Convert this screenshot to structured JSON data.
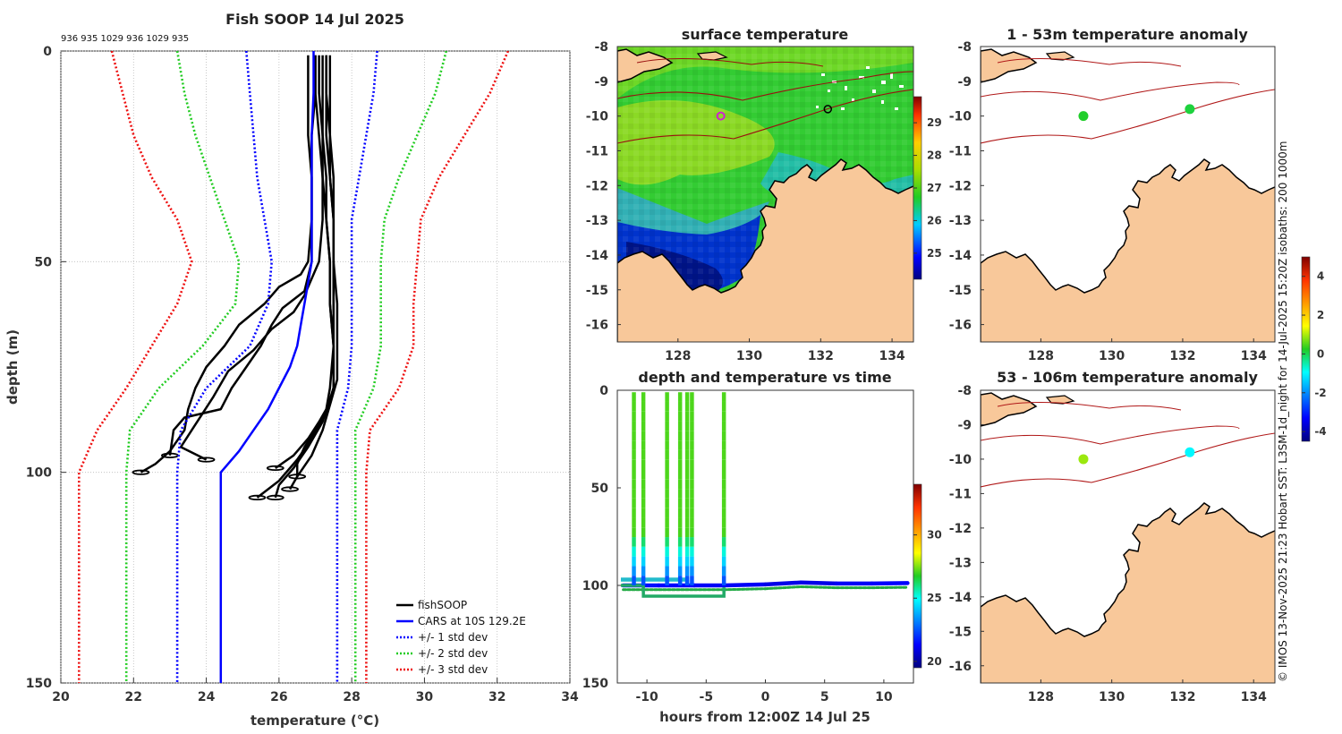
{
  "chart_data": [
    {
      "type": "line",
      "title": "Fish SOOP 14 Jul 2025",
      "xlabel": "temperature (°C)",
      "ylabel": "depth (m)",
      "xlim": [
        20,
        34
      ],
      "ylim": [
        150,
        0
      ],
      "xticks": [
        "20",
        "22",
        "24",
        "26",
        "28",
        "30",
        "32",
        "34"
      ],
      "yticks": [
        "0",
        "50",
        "100",
        "150"
      ],
      "grid": true,
      "legend_position": "bottom-right",
      "header_labels": "936 935 1029 936 1029 935",
      "legend": [
        "fishSOOP",
        "CARS at 10S 129.2E",
        "+/- 1 std dev",
        "+/- 2 std dev",
        "+/- 3 std dev"
      ],
      "series": [
        {
          "name": "fishSOOP",
          "color": "#000000",
          "profiles": [
            {
              "depth": [
                1,
                10,
                20,
                30,
                40,
                50,
                53,
                56,
                60,
                65,
                70,
                75,
                80,
                85,
                90,
                95,
                98,
                100
              ],
              "temp": [
                27.0,
                27.0,
                26.9,
                26.9,
                26.9,
                26.8,
                26.6,
                26.0,
                25.6,
                24.9,
                24.5,
                24.0,
                23.7,
                23.5,
                23.4,
                23.0,
                22.6,
                22.2
              ]
            },
            {
              "depth": [
                1,
                10,
                20,
                30,
                40,
                50,
                57,
                61,
                65,
                70,
                75,
                80,
                85,
                87,
                90,
                96
              ],
              "temp": [
                26.8,
                26.8,
                26.8,
                26.9,
                26.9,
                26.9,
                26.7,
                26.1,
                25.8,
                25.5,
                25.1,
                24.7,
                24.4,
                23.4,
                23.1,
                23.0
              ]
            },
            {
              "depth": [
                1,
                10,
                20,
                30,
                40,
                50,
                58,
                62,
                66,
                71,
                76,
                82,
                86,
                90,
                94,
                97
              ],
              "temp": [
                27.2,
                27.2,
                27.2,
                27.2,
                27.2,
                27.1,
                26.7,
                26.4,
                25.8,
                25.3,
                24.6,
                24.2,
                23.9,
                23.6,
                23.3,
                24.0
              ]
            },
            {
              "depth": [
                1,
                10,
                20,
                30,
                40,
                50,
                60,
                70,
                80,
                85,
                88,
                92,
                96,
                99
              ],
              "temp": [
                27.3,
                27.3,
                27.4,
                27.4,
                27.5,
                27.5,
                27.5,
                27.5,
                27.4,
                27.3,
                27.1,
                26.8,
                26.4,
                25.9
              ]
            },
            {
              "depth": [
                1,
                10,
                20,
                30,
                40,
                50,
                60,
                70,
                80,
                86,
                90,
                94,
                98,
                101
              ],
              "temp": [
                27.0,
                27.0,
                27.1,
                27.2,
                27.3,
                27.4,
                27.4,
                27.5,
                27.5,
                27.3,
                27.0,
                26.7,
                26.5,
                26.5
              ]
            },
            {
              "depth": [
                1,
                10,
                20,
                30,
                40,
                50,
                60,
                70,
                78,
                84,
                90,
                96,
                101,
                104
              ],
              "temp": [
                27.4,
                27.4,
                27.4,
                27.5,
                27.5,
                27.5,
                27.6,
                27.6,
                27.6,
                27.4,
                27.2,
                26.9,
                26.5,
                26.3
              ]
            },
            {
              "depth": [
                1,
                10,
                20,
                30,
                40,
                50,
                60,
                70,
                80,
                88,
                94,
                99,
                103,
                106
              ],
              "temp": [
                27.1,
                27.1,
                27.2,
                27.3,
                27.3,
                27.4,
                27.4,
                27.5,
                27.5,
                27.2,
                26.8,
                26.4,
                26.0,
                25.9
              ]
            },
            {
              "depth": [
                1,
                10,
                20,
                30,
                40,
                50,
                60,
                70,
                80,
                86,
                92,
                97,
                102,
                106
              ],
              "temp": [
                27.3,
                27.3,
                27.3,
                27.4,
                27.5,
                27.5,
                27.5,
                27.5,
                27.5,
                27.3,
                26.9,
                26.5,
                26.0,
                25.4
              ]
            }
          ]
        },
        {
          "name": "CARS",
          "color": "#0000ff",
          "style": "solid",
          "depth": [
            0,
            10,
            20,
            30,
            40,
            50,
            55,
            60,
            65,
            70,
            75,
            80,
            85,
            90,
            95,
            100,
            110,
            120,
            130,
            140,
            150
          ],
          "temp": [
            26.95,
            26.95,
            26.9,
            26.9,
            26.9,
            26.9,
            26.8,
            26.7,
            26.6,
            26.5,
            26.3,
            26.0,
            25.7,
            25.3,
            24.9,
            24.4,
            24.4,
            24.4,
            24.4,
            24.4,
            24.4
          ]
        },
        {
          "name": "+1 std",
          "color": "#0000ff",
          "style": "dotted",
          "depth": [
            0,
            10,
            20,
            30,
            40,
            50,
            60,
            70,
            80,
            90,
            100,
            110,
            120,
            130,
            140,
            150
          ],
          "temp": [
            28.7,
            28.6,
            28.4,
            28.2,
            28.0,
            28.0,
            28.0,
            28.0,
            27.9,
            27.6,
            27.6,
            27.6,
            27.6,
            27.6,
            27.6,
            27.6
          ]
        },
        {
          "name": "-1 std",
          "color": "#0000ff",
          "style": "dotted",
          "depth": [
            0,
            10,
            20,
            30,
            40,
            50,
            60,
            70,
            80,
            90,
            100,
            110,
            120,
            130,
            140,
            150
          ],
          "temp": [
            25.1,
            25.2,
            25.3,
            25.4,
            25.6,
            25.8,
            25.7,
            25.2,
            24.0,
            23.3,
            23.2,
            23.2,
            23.2,
            23.2,
            23.2,
            23.2
          ]
        },
        {
          "name": "+2 std",
          "color": "#22cc22",
          "style": "dotted",
          "depth": [
            0,
            10,
            20,
            30,
            40,
            50,
            60,
            70,
            80,
            90,
            100,
            110,
            120,
            130,
            140,
            150
          ],
          "temp": [
            30.6,
            30.3,
            29.8,
            29.3,
            28.9,
            28.8,
            28.8,
            28.8,
            28.6,
            28.1,
            28.1,
            28.1,
            28.1,
            28.1,
            28.1,
            28.1
          ]
        },
        {
          "name": "-2 std",
          "color": "#22cc22",
          "style": "dotted",
          "depth": [
            0,
            10,
            20,
            30,
            40,
            50,
            60,
            70,
            80,
            90,
            100,
            110,
            120,
            130,
            140,
            150
          ],
          "temp": [
            23.2,
            23.4,
            23.7,
            24.1,
            24.5,
            24.9,
            24.8,
            23.9,
            22.7,
            21.9,
            21.8,
            21.8,
            21.8,
            21.8,
            21.8,
            21.8
          ]
        },
        {
          "name": "+3 std",
          "color": "#ee1111",
          "style": "dotted",
          "depth": [
            0,
            10,
            20,
            30,
            40,
            50,
            60,
            70,
            80,
            90,
            100,
            110,
            120,
            130,
            140,
            150
          ],
          "temp": [
            32.3,
            31.8,
            31.1,
            30.4,
            29.9,
            29.8,
            29.7,
            29.7,
            29.3,
            28.5,
            28.4,
            28.4,
            28.4,
            28.4,
            28.4,
            28.4
          ]
        },
        {
          "name": "-3 std",
          "color": "#ee1111",
          "style": "dotted",
          "depth": [
            0,
            10,
            20,
            30,
            40,
            50,
            60,
            70,
            80,
            90,
            100,
            110,
            120,
            130,
            140,
            150
          ],
          "temp": [
            21.4,
            21.7,
            22.0,
            22.5,
            23.2,
            23.6,
            23.2,
            22.5,
            21.8,
            21.0,
            20.5,
            20.5,
            20.5,
            20.5,
            20.5,
            20.5
          ]
        }
      ]
    },
    {
      "type": "heatmap",
      "title": "surface temperature",
      "xlim": [
        126.3,
        134.6
      ],
      "ylim": [
        -16.5,
        -8
      ],
      "xticks": [
        "128",
        "130",
        "132",
        "134"
      ],
      "yticks": [
        "-8",
        "-9",
        "-10",
        "-11",
        "-12",
        "-13",
        "-14",
        "-15",
        "-16"
      ],
      "colorbar": {
        "ticks": [
          "25",
          "26",
          "27",
          "28",
          "29"
        ],
        "range": [
          24.2,
          29.8
        ]
      },
      "markers": [
        {
          "lon": 129.2,
          "lat": -10.0,
          "color": "#d020d0"
        },
        {
          "lon": 132.2,
          "lat": -9.8,
          "color": "#000000"
        }
      ]
    },
    {
      "type": "scatter",
      "title": "depth and temperature vs time",
      "xlabel": "hours from 12:00Z 14 Jul 25",
      "xlim": [
        -12.5,
        12.5
      ],
      "ylim": [
        150,
        0
      ],
      "xticks": [
        "-10",
        "-5",
        "0",
        "5",
        "10"
      ],
      "yticks": [
        "0",
        "50",
        "100",
        "150"
      ],
      "colorbar": {
        "ticks": [
          "20",
          "25",
          "30"
        ],
        "range": [
          19.5,
          34
        ]
      },
      "casts": [
        -11.1,
        -10.3,
        -8.3,
        -7.2,
        -6.6,
        -6.2,
        -3.5
      ],
      "bottom_track": {
        "time": [
          -12,
          -9,
          -6,
          -3.5,
          0,
          3,
          6,
          9,
          12
        ],
        "depth": [
          100,
          100,
          100,
          100,
          99.5,
          98.5,
          99,
          99,
          98.8
        ],
        "temp": [
          21.5,
          21.3,
          21.2,
          21.2,
          21.0,
          21.0,
          21.2,
          21.3,
          21.4
        ]
      }
    },
    {
      "type": "scatter",
      "title": "1 - 53m temperature anomaly",
      "xlim": [
        126.3,
        134.6
      ],
      "ylim": [
        -16.5,
        -8
      ],
      "xticks": [
        "128",
        "130",
        "132",
        "134"
      ],
      "yticks": [
        "-8",
        "-9",
        "-10",
        "-11",
        "-12",
        "-13",
        "-14",
        "-15",
        "-16"
      ],
      "points": [
        {
          "lon": 129.2,
          "lat": -10.0,
          "anomaly": 0.2
        },
        {
          "lon": 132.2,
          "lat": -9.8,
          "anomaly": 0.1
        }
      ]
    },
    {
      "type": "scatter",
      "title": "53 - 106m temperature anomaly",
      "xlim": [
        126.3,
        134.6
      ],
      "ylim": [
        -16.5,
        -8
      ],
      "xticks": [
        "128",
        "130",
        "132",
        "134"
      ],
      "yticks": [
        "-8",
        "-9",
        "-10",
        "-11",
        "-12",
        "-13",
        "-14",
        "-15",
        "-16"
      ],
      "points": [
        {
          "lon": 129.2,
          "lat": -10.0,
          "anomaly": 0.9
        },
        {
          "lon": 132.2,
          "lat": -9.8,
          "anomaly": -1.0
        }
      ],
      "colorbar": {
        "ticks": [
          "4",
          "2",
          "0",
          "-2",
          "-4"
        ],
        "range": [
          -4.5,
          5.0
        ]
      }
    }
  ],
  "credit": "© IMOS 13-Nov-2025 21:23 Hobart SST: L3SM-1d_night for 14-Jul-2025 15:20Z isobaths: 200  1000m",
  "colors": {
    "land": "#f8c89a",
    "coast": "#000000",
    "isobath": "#b01818",
    "std1": "#0000ff",
    "std2": "#22cc22",
    "std3": "#ee1111"
  }
}
